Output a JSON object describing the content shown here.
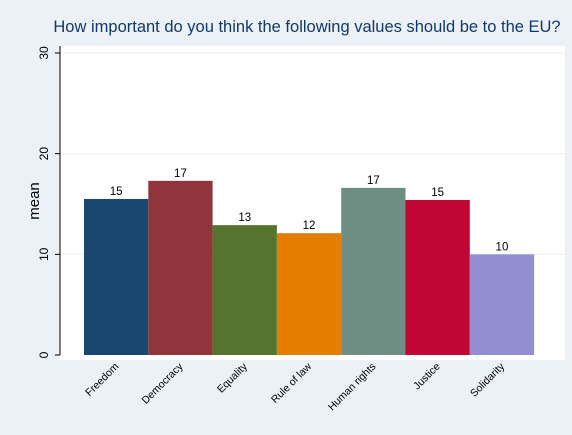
{
  "chart_data": {
    "type": "bar",
    "title": "How important do you think the following values should be to the EU?",
    "xlabel": "",
    "ylabel": "mean",
    "ylim": [
      0,
      30
    ],
    "yticks": [
      0,
      10,
      20,
      30
    ],
    "grid": true,
    "categories": [
      "Freedom",
      "Democracy",
      "Equality",
      "Rule of law",
      "Human rights",
      "Justice",
      "Solidarity"
    ],
    "values": [
      15.5,
      17.3,
      12.9,
      12.1,
      16.6,
      15.4,
      10.0
    ],
    "data_labels": [
      "15",
      "17",
      "13",
      "12",
      "17",
      "15",
      "10"
    ],
    "colors": [
      "#1a476f",
      "#90353b",
      "#55752f",
      "#e37e00",
      "#6e8e84",
      "#c10534",
      "#938dd2"
    ]
  }
}
